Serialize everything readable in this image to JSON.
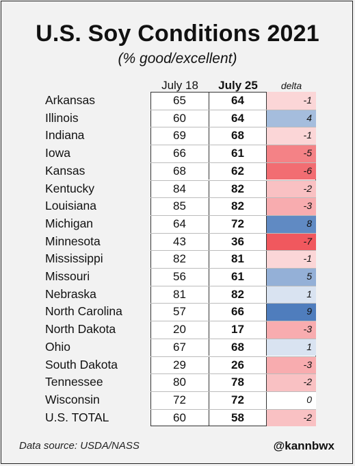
{
  "chart_data": {
    "type": "table",
    "title": "U.S. Soy Conditions 2021",
    "subtitle": "(% good/excellent)",
    "columns": [
      "July 18",
      "July 25",
      "delta"
    ],
    "rows": [
      {
        "state": "Arkansas",
        "jul18": 65,
        "jul25": 64,
        "delta": -1
      },
      {
        "state": "Illinois",
        "jul18": 60,
        "jul25": 64,
        "delta": 4
      },
      {
        "state": "Indiana",
        "jul18": 69,
        "jul25": 68,
        "delta": -1
      },
      {
        "state": "Iowa",
        "jul18": 66,
        "jul25": 61,
        "delta": -5
      },
      {
        "state": "Kansas",
        "jul18": 68,
        "jul25": 62,
        "delta": -6
      },
      {
        "state": "Kentucky",
        "jul18": 84,
        "jul25": 82,
        "delta": -2
      },
      {
        "state": "Louisiana",
        "jul18": 85,
        "jul25": 82,
        "delta": -3
      },
      {
        "state": "Michigan",
        "jul18": 64,
        "jul25": 72,
        "delta": 8
      },
      {
        "state": "Minnesota",
        "jul18": 43,
        "jul25": 36,
        "delta": -7
      },
      {
        "state": "Mississippi",
        "jul18": 82,
        "jul25": 81,
        "delta": -1
      },
      {
        "state": "Missouri",
        "jul18": 56,
        "jul25": 61,
        "delta": 5
      },
      {
        "state": "Nebraska",
        "jul18": 81,
        "jul25": 82,
        "delta": 1
      },
      {
        "state": "North Carolina",
        "jul18": 57,
        "jul25": 66,
        "delta": 9
      },
      {
        "state": "North Dakota",
        "jul18": 20,
        "jul25": 17,
        "delta": -3
      },
      {
        "state": "Ohio",
        "jul18": 67,
        "jul25": 68,
        "delta": 1
      },
      {
        "state": "South Dakota",
        "jul18": 29,
        "jul25": 26,
        "delta": -3
      },
      {
        "state": "Tennessee",
        "jul18": 80,
        "jul25": 78,
        "delta": -2
      },
      {
        "state": "Wisconsin",
        "jul18": 72,
        "jul25": 72,
        "delta": 0
      },
      {
        "state": "U.S. TOTAL",
        "jul18": 60,
        "jul25": 58,
        "delta": -2
      }
    ],
    "colors": {
      "positive": "#4f7dbd",
      "negative": "#f0585e",
      "neutral": "#ffffff"
    }
  },
  "footer": {
    "source": "Data source: USDA/NASS",
    "credit": "@kannbwx"
  }
}
